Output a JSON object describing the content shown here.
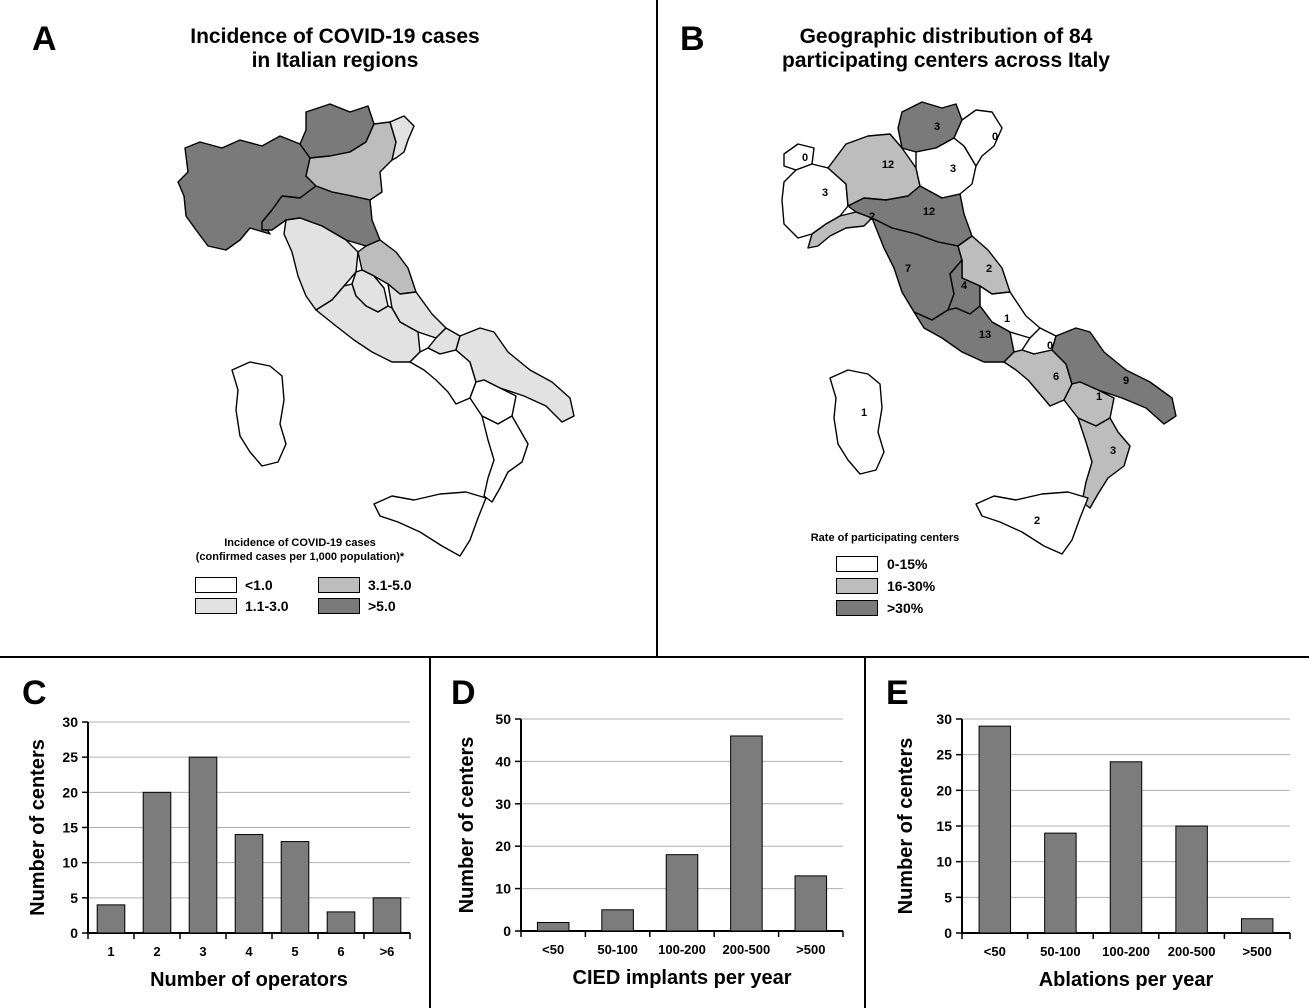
{
  "colors": {
    "white": "#ffffff",
    "light": "#e2e2e2",
    "mid": "#bdbdbd",
    "dark": "#7a7a7a",
    "bar": "#7c7c7c",
    "grid": "#b0b0b0"
  },
  "panel_a": {
    "letter": "A",
    "title_line1": "Incidence of COVID-19 cases",
    "title_line2": "in Italian regions",
    "legend_title_line1": "Incidence of COVID-19 cases",
    "legend_title_line2": "(confirmed cases per 1,000 population)*",
    "legend": [
      {
        "label": "<1.0",
        "color": "#ffffff"
      },
      {
        "label": "3.1-5.0",
        "color": "#bdbdbd"
      },
      {
        "label": "1.1-3.0",
        "color": "#e2e2e2"
      },
      {
        "label": ">5.0",
        "color": "#7a7a7a"
      }
    ]
  },
  "panel_b": {
    "letter": "B",
    "title_line1": "Geographic distribution of 84",
    "title_line2": "participating centers across Italy",
    "legend_title": "Rate of participating centers",
    "legend": [
      {
        "label": "0-15%",
        "color": "#ffffff"
      },
      {
        "label": "16-30%",
        "color": "#bdbdbd"
      },
      {
        "label": ">30%",
        "color": "#7a7a7a"
      }
    ],
    "region_counts": [
      "0",
      "3",
      "12",
      "3",
      "3",
      "0",
      "2",
      "12",
      "7",
      "2",
      "4",
      "1",
      "13",
      "0",
      "9",
      "6",
      "1",
      "1",
      "3",
      "2"
    ]
  },
  "chart_data": [
    {
      "type": "bar",
      "letter": "C",
      "categories": [
        "1",
        "2",
        "3",
        "4",
        "5",
        "6",
        ">6"
      ],
      "values": [
        4,
        20,
        25,
        14,
        13,
        3,
        5
      ],
      "xlabel": "Number of operators",
      "ylabel": "Number of centers",
      "ylim": [
        0,
        30
      ],
      "yticks": [
        0,
        5,
        10,
        15,
        20,
        25,
        30
      ],
      "grid": true
    },
    {
      "type": "bar",
      "letter": "D",
      "categories": [
        "<50",
        "50-100",
        "100-200",
        "200-500",
        ">500"
      ],
      "values": [
        2,
        5,
        18,
        46,
        13
      ],
      "xlabel": "CIED implants per year",
      "ylabel": "Number of centers",
      "ylim": [
        0,
        50
      ],
      "yticks": [
        0,
        10,
        20,
        30,
        40,
        50
      ],
      "grid": true
    },
    {
      "type": "bar",
      "letter": "E",
      "categories": [
        "<50",
        "50-100",
        "100-200",
        "200-500",
        ">500"
      ],
      "values": [
        29,
        14,
        24,
        15,
        2
      ],
      "xlabel": "Ablations per year",
      "ylabel": "Number of centers",
      "ylim": [
        0,
        30
      ],
      "yticks": [
        0,
        5,
        10,
        15,
        20,
        25,
        30
      ],
      "grid": true
    }
  ]
}
